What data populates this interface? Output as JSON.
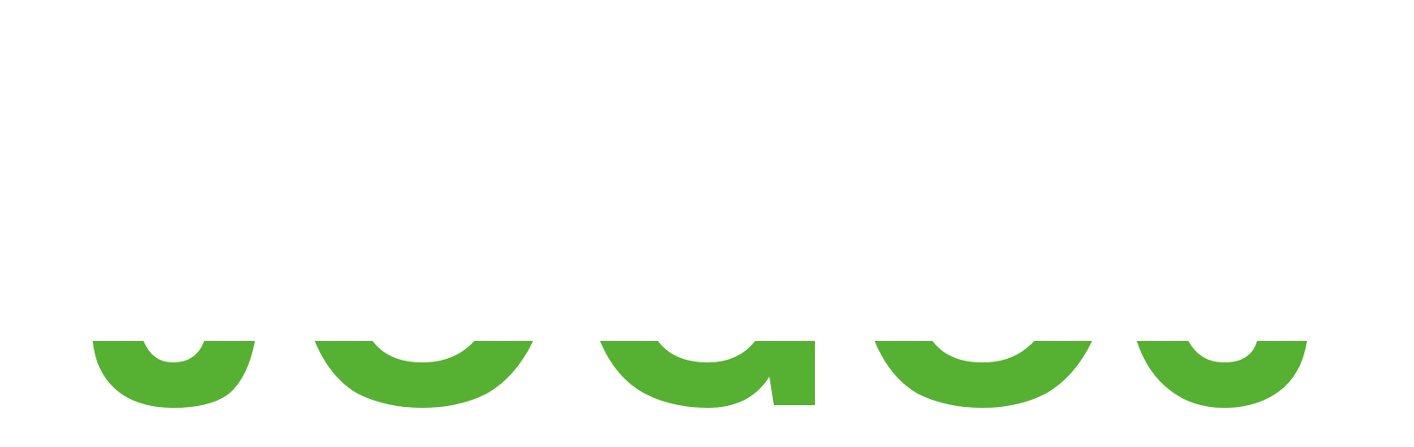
{
  "logo": {
    "accent_color": "#56b031",
    "background_color": "#ffffff",
    "lettering": "",
    "fragments": [
      "bowl-fragment-1",
      "bowl-fragment-2",
      "bowl-fragment-3",
      "bowl-fragment-4",
      "bowl-fragment-5"
    ]
  }
}
